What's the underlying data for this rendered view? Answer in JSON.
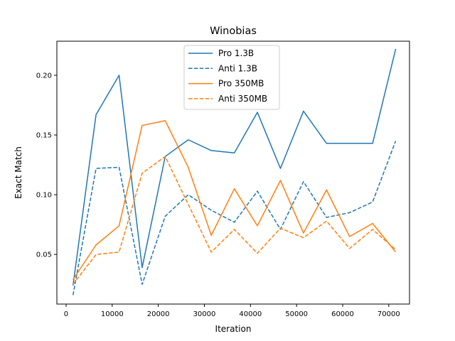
{
  "chart_data": {
    "type": "line",
    "title": "Winobias",
    "xlabel": "Iteration",
    "ylabel": "Exact Match",
    "xlim": [
      -2000,
      74500
    ],
    "ylim": [
      0.0085,
      0.2285
    ],
    "x_ticks": [
      0,
      10000,
      20000,
      30000,
      40000,
      50000,
      60000,
      70000
    ],
    "x_tick_labels": [
      "0",
      "10000",
      "20000",
      "30000",
      "40000",
      "50000",
      "60000",
      "70000"
    ],
    "y_ticks": [
      0.05,
      0.1,
      0.15,
      0.2
    ],
    "y_tick_labels": [
      "0.05",
      "0.10",
      "0.15",
      "0.20"
    ],
    "grid": false,
    "legend_position": "top-center",
    "x": [
      1500,
      6500,
      11500,
      16500,
      21500,
      26500,
      31500,
      36500,
      41500,
      46500,
      51500,
      56500,
      61500,
      66500,
      71500
    ],
    "series": [
      {
        "name": "Pro 1.3B",
        "color": "#1f77b4",
        "dash": "solid",
        "values": [
          0.024,
          0.167,
          0.2,
          0.039,
          0.132,
          0.146,
          0.137,
          0.135,
          0.169,
          0.122,
          0.17,
          0.143,
          0.143,
          0.143,
          0.222
        ]
      },
      {
        "name": "Anti 1.3B",
        "color": "#1f77b4",
        "dash": "dashed",
        "values": [
          0.016,
          0.122,
          0.123,
          0.025,
          0.082,
          0.1,
          0.087,
          0.077,
          0.103,
          0.071,
          0.111,
          0.081,
          0.085,
          0.094,
          0.145
        ]
      },
      {
        "name": "Pro 350MB",
        "color": "#ff7f0e",
        "dash": "solid",
        "values": [
          0.029,
          0.058,
          0.074,
          0.158,
          0.162,
          0.123,
          0.066,
          0.105,
          0.074,
          0.112,
          0.068,
          0.104,
          0.065,
          0.076,
          0.052
        ]
      },
      {
        "name": "Anti 350MB",
        "color": "#ff7f0e",
        "dash": "dashed",
        "values": [
          0.025,
          0.05,
          0.052,
          0.118,
          0.132,
          0.092,
          0.052,
          0.071,
          0.051,
          0.072,
          0.064,
          0.078,
          0.055,
          0.071,
          0.054
        ]
      }
    ]
  }
}
